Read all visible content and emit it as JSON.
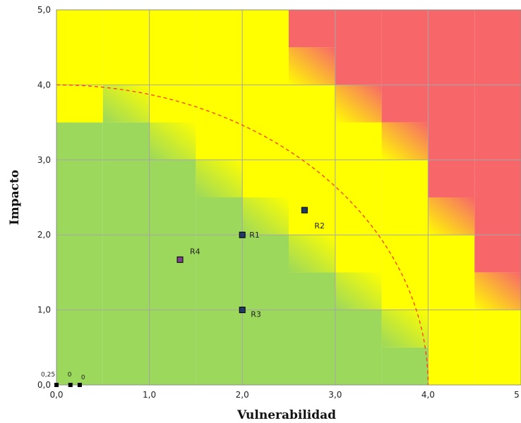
{
  "chart_data": {
    "type": "scatter",
    "title": "",
    "xlabel": "Vulnerabilidad",
    "ylabel": "Impacto",
    "xlim": [
      0,
      5
    ],
    "ylim": [
      0,
      5
    ],
    "x_ticks": [
      0,
      1,
      2,
      3,
      4,
      5
    ],
    "y_ticks": [
      0,
      1,
      2,
      3,
      4,
      5
    ],
    "x_tick_labels": [
      "0,0",
      "1,0",
      "2,0",
      "3,0",
      "4,0",
      "5"
    ],
    "y_tick_labels": [
      "0,0",
      "1,0",
      "2,0",
      "3,0",
      "4,0",
      "5,0"
    ],
    "grid": true,
    "colors": {
      "low": "#9cd85c",
      "medium": "#ffff00",
      "high": "#f7676a",
      "threshold_line": "#ff3b1f",
      "point": "#1f3864",
      "point_border": "#000000",
      "point_r4": "#7b3f8c",
      "grid": "#a6a6a6"
    },
    "zones": {
      "step": 0.5,
      "low_upper": [
        3.5,
        3.5,
        3.0,
        2.5,
        2.0,
        1.5,
        1.0,
        0.5,
        0.0,
        0.0
      ],
      "high_lower": [
        5.0,
        5.0,
        5.0,
        5.0,
        5.0,
        4.5,
        4.0,
        3.5,
        2.5,
        1.5
      ]
    },
    "threshold_curve": {
      "shape": "quarter-circle",
      "radius": 4.0,
      "style": "dashed"
    },
    "series": [
      {
        "points": [
          {
            "label": "R1",
            "x": 2.0,
            "y": 2.0
          },
          {
            "label": "R2",
            "x": 2.67,
            "y": 2.33
          },
          {
            "label": "R3",
            "x": 2.0,
            "y": 1.0
          },
          {
            "label": "R4",
            "x": 1.33,
            "y": 1.67
          }
        ]
      }
    ],
    "corner_points": [
      {
        "label": "0,25",
        "x": 0.0,
        "y": 0.0
      },
      {
        "label": "0",
        "x": 0.15,
        "y": 0.0
      },
      {
        "label": "0",
        "x": 0.25,
        "y": 0.0
      }
    ]
  }
}
